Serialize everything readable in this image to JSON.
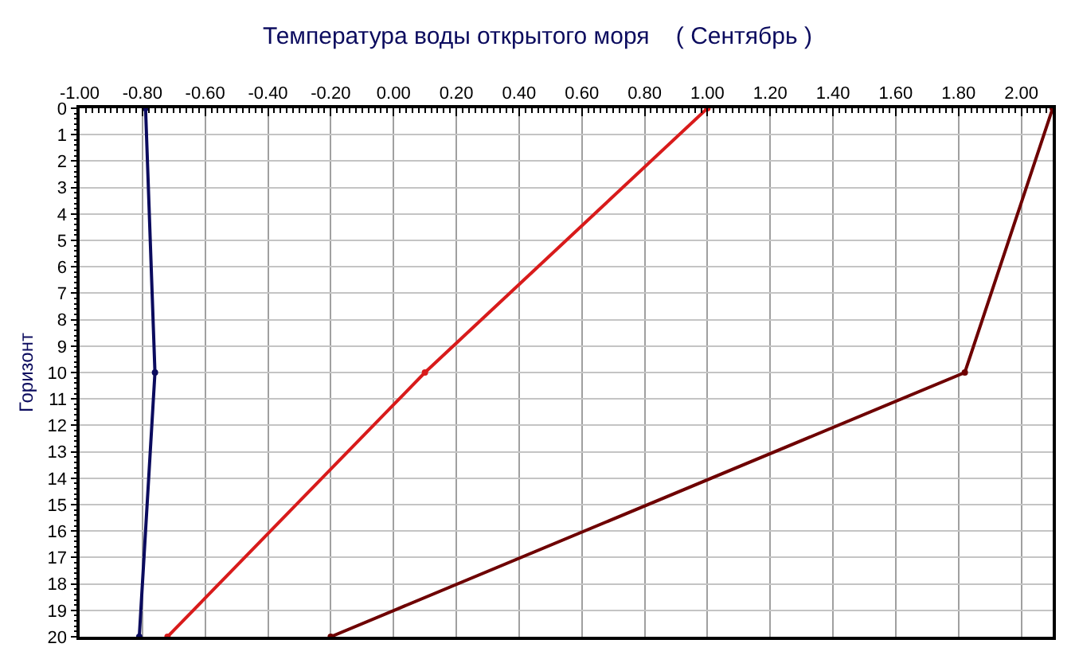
{
  "chart_data": {
    "type": "line",
    "title": "Температура воды открытого моря    ( Сентябрь )",
    "ylabel": "Горизонт",
    "xlim": [
      -1.0,
      2.1
    ],
    "xticks": [
      {
        "value": -1.0,
        "label": "-1.00"
      },
      {
        "value": -0.8,
        "label": "-0.80"
      },
      {
        "value": -0.6,
        "label": "-0.60"
      },
      {
        "value": -0.4,
        "label": "-0.40"
      },
      {
        "value": -0.2,
        "label": "-0.20"
      },
      {
        "value": 0.0,
        "label": "0.00"
      },
      {
        "value": 0.2,
        "label": "0.20"
      },
      {
        "value": 0.4,
        "label": "0.40"
      },
      {
        "value": 0.6,
        "label": "0.60"
      },
      {
        "value": 0.8,
        "label": "0.80"
      },
      {
        "value": 1.0,
        "label": "1.00"
      },
      {
        "value": 1.2,
        "label": "1.20"
      },
      {
        "value": 1.4,
        "label": "1.40"
      },
      {
        "value": 1.6,
        "label": "1.60"
      },
      {
        "value": 1.8,
        "label": "1.80"
      },
      {
        "value": 2.0,
        "label": "2.00"
      }
    ],
    "ylim": [
      20,
      0
    ],
    "yticks": [
      0,
      1,
      2,
      3,
      4,
      5,
      6,
      7,
      8,
      9,
      10,
      11,
      12,
      13,
      14,
      15,
      16,
      17,
      18,
      19,
      20
    ],
    "grid": true,
    "marker": "circle",
    "line_style": "solid",
    "series": [
      {
        "color": "#0b0b5e",
        "x": [
          -0.79,
          -0.76,
          -0.81
        ],
        "values": [
          0,
          10,
          20
        ]
      },
      {
        "color": "#d81b1b",
        "x": [
          1.0,
          0.1,
          -0.72
        ],
        "values": [
          0,
          10,
          20
        ]
      },
      {
        "color": "#6e0000",
        "x": [
          2.1,
          1.82,
          -0.2
        ],
        "values": [
          0,
          10,
          20
        ]
      }
    ]
  }
}
